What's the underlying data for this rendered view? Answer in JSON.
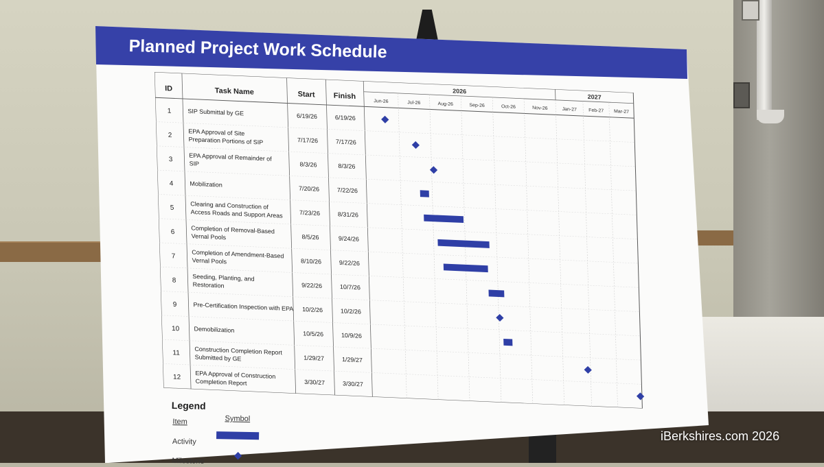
{
  "board": {
    "title": "Planned Project Work Schedule",
    "banner_color": "#3641a8",
    "bar_color": "#2f3fa6"
  },
  "table": {
    "headers": {
      "id": "ID",
      "task": "Task Name",
      "start": "Start",
      "finish": "Finish"
    },
    "years": [
      "2026",
      "2027"
    ],
    "months": [
      "Jun-26",
      "Jul-26",
      "Aug-26",
      "Sep-26",
      "Oct-26",
      "Nov-26",
      "Jan-27",
      "Feb-27",
      "Mar-27"
    ],
    "rows": [
      {
        "id": "1",
        "task": [
          "SIP Submittal by GE"
        ],
        "start": "6/19/26",
        "finish": "6/19/26",
        "kind": "milestone"
      },
      {
        "id": "2",
        "task": [
          "EPA Approval of Site",
          "Preparation Portions of SIP"
        ],
        "start": "7/17/26",
        "finish": "7/17/26",
        "kind": "milestone"
      },
      {
        "id": "3",
        "task": [
          "EPA Approval of Remainder of",
          "SIP"
        ],
        "start": "8/3/26",
        "finish": "8/3/26",
        "kind": "milestone"
      },
      {
        "id": "4",
        "task": [
          "Mobilization"
        ],
        "start": "7/20/26",
        "finish": "7/22/26",
        "kind": "activity"
      },
      {
        "id": "5",
        "task": [
          "Clearing and Construction of",
          "Access Roads and Support Areas"
        ],
        "start": "7/23/26",
        "finish": "8/31/26",
        "kind": "activity"
      },
      {
        "id": "6",
        "task": [
          "Completion of Removal-Based",
          "Vernal Pools"
        ],
        "start": "8/5/26",
        "finish": "9/24/26",
        "kind": "activity"
      },
      {
        "id": "7",
        "task": [
          "Completion of Amendment-Based",
          "Vernal Pools"
        ],
        "start": "8/10/26",
        "finish": "9/22/26",
        "kind": "activity"
      },
      {
        "id": "8",
        "task": [
          "Seeding, Planting, and",
          "Restoration"
        ],
        "start": "9/22/26",
        "finish": "10/7/26",
        "kind": "activity"
      },
      {
        "id": "9",
        "task": [
          "Pre-Certification Inspection with EPA"
        ],
        "start": "10/2/26",
        "finish": "10/2/26",
        "kind": "milestone"
      },
      {
        "id": "10",
        "task": [
          "Demobilization"
        ],
        "start": "10/5/26",
        "finish": "10/9/26",
        "kind": "activity"
      },
      {
        "id": "11",
        "task": [
          "Construction Completion Report",
          "Submitted by GE"
        ],
        "start": "1/29/27",
        "finish": "1/29/27",
        "kind": "milestone"
      },
      {
        "id": "12",
        "task": [
          "EPA Approval of Construction",
          "Completion Report"
        ],
        "start": "3/30/27",
        "finish": "3/30/27",
        "kind": "milestone"
      }
    ]
  },
  "legend": {
    "title": "Legend",
    "item_header": "Item",
    "symbol_header": "Symbol",
    "activity": "Activity",
    "milestone": "Milestone"
  },
  "watermark": "iBerkshires.com 2026"
}
